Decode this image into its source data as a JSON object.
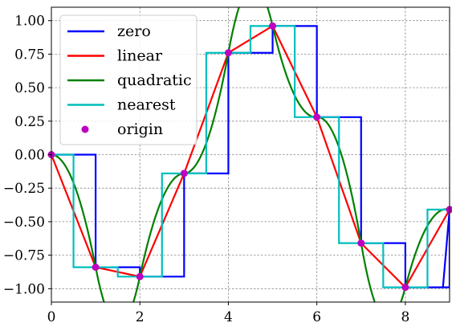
{
  "chart_data": {
    "type": "line",
    "xlim": [
      0,
      9
    ],
    "ylim": [
      -1.1,
      1.1
    ],
    "x_ticks": [
      0,
      2,
      4,
      6,
      8
    ],
    "y_ticks": [
      1.0,
      0.75,
      0.5,
      0.25,
      0.0,
      -0.25,
      -0.5,
      -0.75,
      -1.0
    ],
    "x_tick_labels": [
      "0",
      "2",
      "4",
      "6",
      "8"
    ],
    "y_tick_labels": [
      "1.00",
      "0.75",
      "0.50",
      "0.25",
      "0.00",
      "−0.25",
      "−0.50",
      "−0.75",
      "−1.00"
    ],
    "grid": true,
    "legend_position": "upper-left",
    "origin_points": {
      "x": [
        0,
        1,
        2,
        3,
        4,
        5,
        6,
        7,
        8,
        9
      ],
      "y": [
        0.0,
        -0.84,
        -0.91,
        -0.14,
        0.76,
        0.96,
        0.28,
        -0.66,
        -0.99,
        -0.41
      ]
    },
    "series": [
      {
        "name": "zero",
        "kind": "step-previous",
        "color": "#0000ff"
      },
      {
        "name": "linear",
        "kind": "linear",
        "color": "#ff0000"
      },
      {
        "name": "quadratic",
        "kind": "quadratic",
        "color": "#008000"
      },
      {
        "name": "nearest",
        "kind": "step-nearest",
        "color": "#00bfbf"
      },
      {
        "name": "origin",
        "kind": "points",
        "color": "#bf00bf"
      }
    ]
  }
}
